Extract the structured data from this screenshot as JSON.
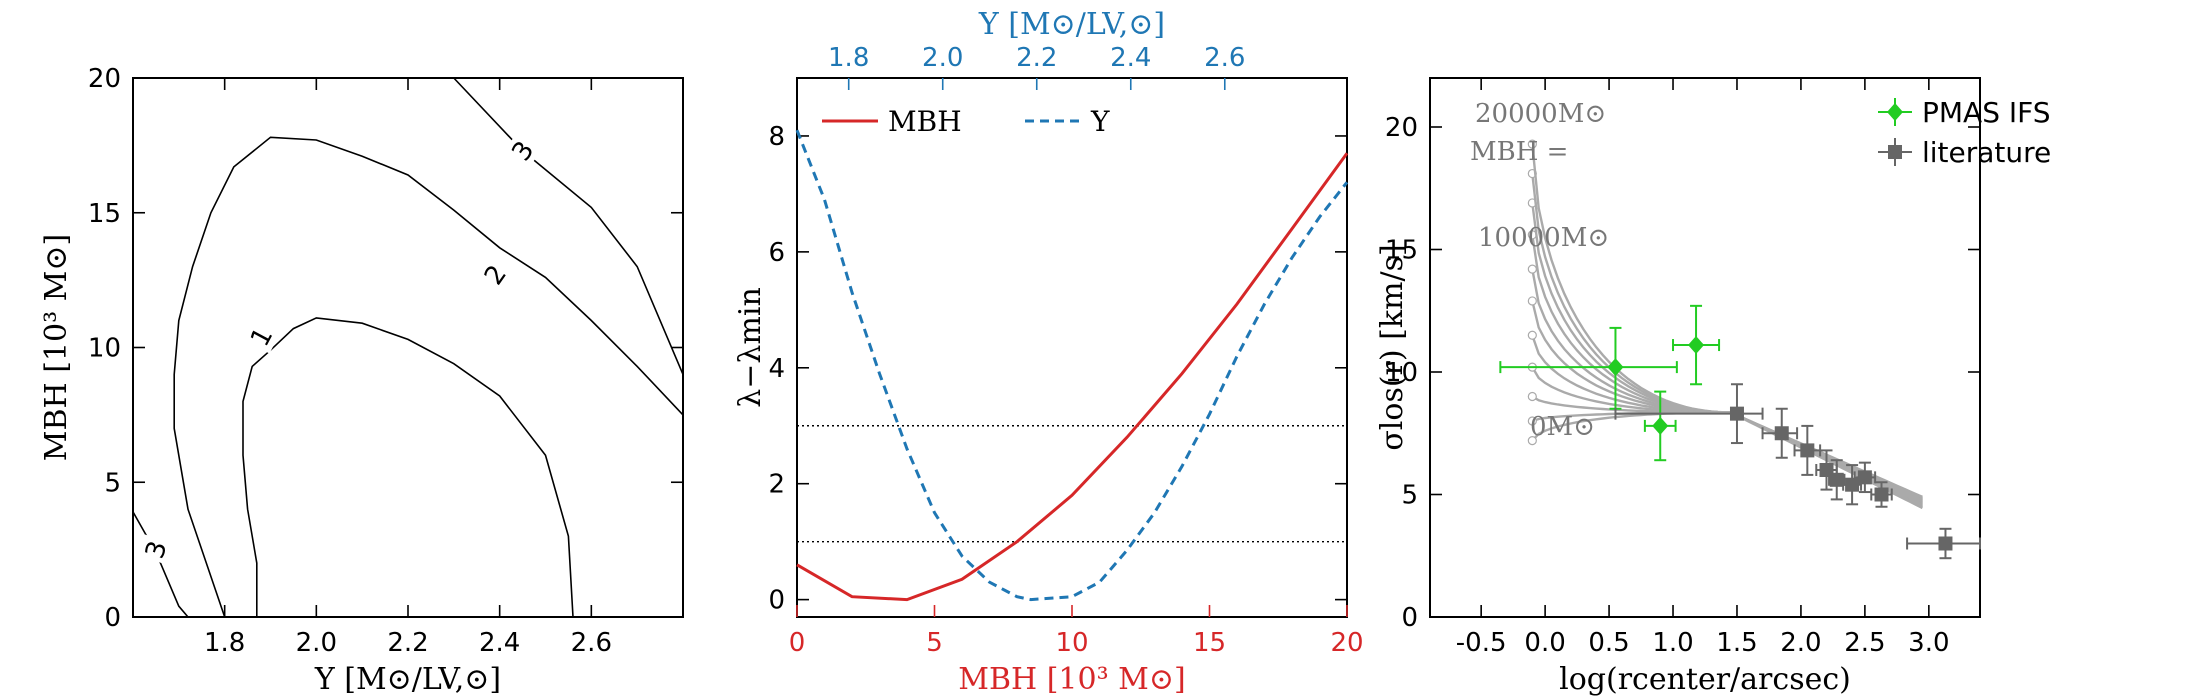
{
  "colors": {
    "red": "#d62728",
    "blue": "#1f77b4",
    "green": "#22cc22",
    "gray": "#666666",
    "model_gray": "#aaaaaa"
  },
  "chart_data": [
    {
      "id": "contour",
      "type": "contour",
      "xlabel": "Υ [M⊙/LV,⊙]",
      "ylabel": "MBH [10³ M⊙]",
      "xlim": [
        1.6,
        2.8
      ],
      "ylim": [
        0,
        20
      ],
      "xticks": [
        "1.8",
        "2.0",
        "2.2",
        "2.4",
        "2.6"
      ],
      "yticks": [
        "0",
        "5",
        "10",
        "15",
        "20"
      ],
      "levels": [
        {
          "label": "1",
          "points": [
            [
              1.87,
              0
            ],
            [
              1.87,
              2
            ],
            [
              1.85,
              4
            ],
            [
              1.84,
              6
            ],
            [
              1.84,
              8
            ],
            [
              1.86,
              9.3
            ],
            [
              1.9,
              9.9
            ],
            [
              1.95,
              10.7
            ],
            [
              2.0,
              11.1
            ],
            [
              2.1,
              10.9
            ],
            [
              2.2,
              10.3
            ],
            [
              2.3,
              9.4
            ],
            [
              2.4,
              8.2
            ],
            [
              2.5,
              6
            ],
            [
              2.55,
              3
            ],
            [
              2.56,
              0
            ]
          ]
        },
        {
          "label": "2",
          "points": [
            [
              1.8,
              0
            ],
            [
              1.72,
              4
            ],
            [
              1.69,
              7
            ],
            [
              1.69,
              9
            ],
            [
              1.7,
              11
            ],
            [
              1.73,
              13
            ],
            [
              1.77,
              15
            ],
            [
              1.82,
              16.7
            ],
            [
              1.9,
              17.8
            ],
            [
              2.0,
              17.7
            ],
            [
              2.1,
              17.1
            ],
            [
              2.2,
              16.4
            ],
            [
              2.3,
              15.1
            ],
            [
              2.4,
              13.7
            ],
            [
              2.5,
              12.6
            ],
            [
              2.6,
              11
            ],
            [
              2.7,
              9.3
            ],
            [
              2.8,
              7.5
            ]
          ]
        },
        {
          "label": "3",
          "points": [
            [
              2.3,
              20
            ],
            [
              2.45,
              17.3
            ],
            [
              2.6,
              15.2
            ],
            [
              2.7,
              13
            ],
            [
              2.8,
              9
            ]
          ]
        },
        {
          "label": "3",
          "points": [
            [
              1.6,
              3.9
            ],
            [
              1.63,
              3
            ],
            [
              1.66,
              2
            ],
            [
              1.7,
              0.4
            ],
            [
              1.72,
              0
            ]
          ]
        }
      ]
    },
    {
      "id": "likelihood",
      "type": "line",
      "xlabel": "MBH [10³ M⊙]",
      "ylabel": "λ−λmin",
      "top_xlabel": "Υ [M⊙/LV,⊙]",
      "xlim": [
        0,
        20
      ],
      "ylim": [
        -0.3,
        9
      ],
      "xticks": [
        "0",
        "5",
        "10",
        "15",
        "20"
      ],
      "yticks": [
        "0",
        "2",
        "4",
        "6",
        "8"
      ],
      "top_xticks": [
        "1.8",
        "2.0",
        "2.2",
        "2.4",
        "2.6"
      ],
      "hlines": [
        1,
        3
      ],
      "series": [
        {
          "name": "MBH",
          "style": "solid",
          "x": [
            0,
            2,
            4,
            6,
            8,
            10,
            12,
            14,
            16,
            18,
            20
          ],
          "y": [
            0.6,
            0.05,
            0.0,
            0.35,
            1.0,
            1.8,
            2.8,
            3.9,
            5.1,
            6.4,
            7.7
          ]
        },
        {
          "name": "Υ",
          "style": "dashed",
          "x": [
            0,
            1,
            2,
            3,
            4,
            5,
            6,
            7,
            8,
            8.5,
            10,
            11,
            12,
            13,
            14,
            15,
            16,
            17,
            18,
            19,
            20
          ],
          "y": [
            8.1,
            6.9,
            5.3,
            3.9,
            2.6,
            1.5,
            0.75,
            0.3,
            0.05,
            0.0,
            0.05,
            0.3,
            0.85,
            1.5,
            2.3,
            3.2,
            4.2,
            5.1,
            5.9,
            6.6,
            7.2
          ]
        }
      ]
    },
    {
      "id": "dispersion",
      "type": "line+errorbar",
      "xlabel": "log(rcenter/arcsec)",
      "ylabel": "σlos(r) [km/s]",
      "xlim": [
        -0.9,
        3.4
      ],
      "ylim": [
        0,
        22
      ],
      "xticks": [
        "-0.5",
        "0.0",
        "0.5",
        "1.0",
        "1.5",
        "2.0",
        "2.5",
        "3.0"
      ],
      "yticks": [
        "0",
        "5",
        "10",
        "15",
        "20"
      ],
      "model_labels": [
        "20000M⊙",
        "MBH =",
        "10000M⊙",
        "0M⊙"
      ],
      "models": [
        {
          "mbh": "0",
          "start": 7.2
        },
        {
          "mbh": "2000",
          "start": 8.0
        },
        {
          "mbh": "4000",
          "start": 9.0
        },
        {
          "mbh": "6000",
          "start": 10.2
        },
        {
          "mbh": "8000",
          "start": 11.5
        },
        {
          "mbh": "10000",
          "start": 12.9
        },
        {
          "mbh": "12000",
          "start": 14.2
        },
        {
          "mbh": "14000",
          "start": 15.6
        },
        {
          "mbh": "16000",
          "start": 16.9
        },
        {
          "mbh": "18000",
          "start": 18.1
        },
        {
          "mbh": "20000",
          "start": 19.3
        }
      ],
      "series": [
        {
          "name": "PMAS IFS",
          "marker": "diamond",
          "points": [
            {
              "x": 0.55,
              "y": 10.2,
              "xerr": [
                0.9,
                0.48
              ],
              "yerr": [
                1.7,
                1.6
              ]
            },
            {
              "x": 0.9,
              "y": 7.8,
              "xerr": [
                0.12,
                0.12
              ],
              "yerr": [
                1.4,
                1.4
              ]
            },
            {
              "x": 1.18,
              "y": 11.1,
              "xerr": [
                0.18,
                0.18
              ],
              "yerr": [
                1.6,
                1.6
              ]
            }
          ]
        },
        {
          "name": "literature",
          "marker": "square",
          "points": [
            {
              "x": 1.5,
              "y": 8.3,
              "xerr": [
                0.95,
                0.2
              ],
              "yerr": [
                1.2,
                1.2
              ]
            },
            {
              "x": 1.85,
              "y": 7.5,
              "xerr": [
                0.15,
                0.12
              ],
              "yerr": [
                1.0,
                1.0
              ]
            },
            {
              "x": 2.05,
              "y": 6.8,
              "xerr": [
                0.1,
                0.1
              ],
              "yerr": [
                1.0,
                1.0
              ]
            },
            {
              "x": 2.2,
              "y": 6.0,
              "xerr": [
                0.08,
                0.08
              ],
              "yerr": [
                0.8,
                0.8
              ]
            },
            {
              "x": 2.28,
              "y": 5.6,
              "xerr": [
                0.06,
                0.06
              ],
              "yerr": [
                0.8,
                0.8
              ]
            },
            {
              "x": 2.4,
              "y": 5.4,
              "xerr": [
                0.07,
                0.07
              ],
              "yerr": [
                0.8,
                0.8
              ]
            },
            {
              "x": 2.5,
              "y": 5.7,
              "xerr": [
                0.08,
                0.08
              ],
              "yerr": [
                0.6,
                0.6
              ]
            },
            {
              "x": 2.63,
              "y": 5.0,
              "xerr": [
                0.08,
                0.08
              ],
              "yerr": [
                0.5,
                0.5
              ]
            },
            {
              "x": 3.13,
              "y": 3.0,
              "xerr": [
                0.3,
                0.27
              ],
              "yerr": [
                0.6,
                0.6
              ]
            }
          ]
        }
      ]
    }
  ]
}
